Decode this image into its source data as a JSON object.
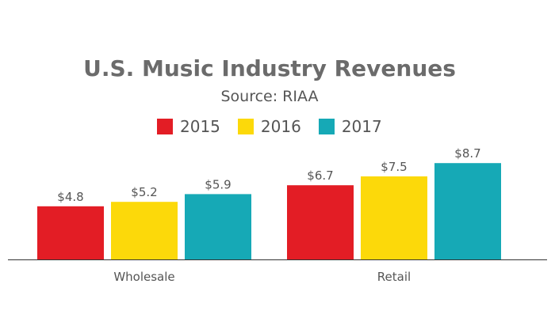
{
  "chart_data": {
    "type": "bar",
    "title": "U.S. Music Industry Revenues",
    "subtitle": "Source: RIAA",
    "xlabel": "",
    "ylabel": "",
    "ylim": [
      0,
      9.4
    ],
    "grid": false,
    "legend_position": "top-center",
    "categories": [
      "Wholesale",
      "Retail"
    ],
    "series": [
      {
        "name": "2015",
        "color": "#e31d25",
        "values": [
          4.8,
          6.7
        ],
        "labels": [
          "$4.8",
          "$6.7"
        ]
      },
      {
        "name": "2016",
        "color": "#fcd90a",
        "values": [
          5.2,
          7.5
        ],
        "labels": [
          "$5.2",
          "$7.5"
        ]
      },
      {
        "name": "2017",
        "color": "#16a9b6",
        "values": [
          5.9,
          8.7
        ],
        "labels": [
          "$5.9",
          "$8.7"
        ]
      }
    ]
  }
}
